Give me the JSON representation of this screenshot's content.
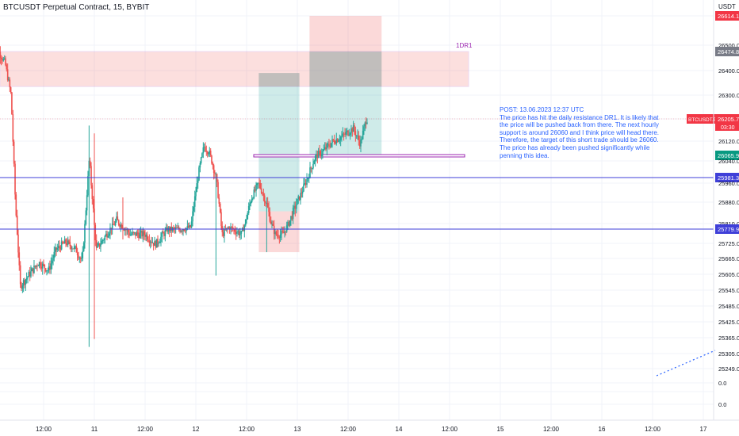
{
  "chart_data": {
    "type": "candlestick",
    "title": "BTCUSDT Perpetual Contract, 15, BYBIT",
    "currency": "USDT",
    "x_tick_labels": [
      "12:00",
      "11",
      "12:00",
      "12",
      "12:00",
      "13",
      "12:00",
      "14",
      "12:00",
      "15",
      "12:00",
      "16",
      "12:00",
      "17"
    ],
    "y_tick_labels": [
      "26614.1",
      "26500.0",
      "26474.8",
      "26400.0",
      "26300.0",
      "26205.7",
      "03:30",
      "26120.0",
      "26065.9",
      "26040.0",
      "25981.3",
      "25960.0",
      "25880.0",
      "25810.0",
      "25779.9",
      "25725.0",
      "25665.0",
      "25605.0",
      "25545.0",
      "25485.0",
      "25425.0",
      "25365.0",
      "25305.0",
      "25249.0",
      "0.0",
      "0.0"
    ],
    "price_label": {
      "symbol": "BTCUSDT.P",
      "value": "26205.7",
      "countdown": "03:30"
    },
    "horizontal_levels": [
      {
        "value": "25981.3",
        "color": "#3f3fd8"
      },
      {
        "value": "25779.9",
        "color": "#3f3fd8"
      }
    ],
    "resistance_zone": {
      "label": "1DR1",
      "top": 26474.8,
      "bottom": 26335,
      "color": "#9c27b0"
    },
    "support_zone_top": 26065.9,
    "positions": [
      {
        "kind": "long",
        "start_day": 12.62,
        "end_day": 13.02,
        "target": 26390,
        "entry": 25850,
        "stop": 25690
      },
      {
        "kind": "short",
        "start_day": 13.12,
        "end_day": 13.83,
        "stop": 26614.1,
        "entry": 26474.8,
        "target": 26065.9
      }
    ],
    "annotation": [
      "POST: 13.06.2023 12:37 UTC",
      "The price has hit the daily resistance DR1. It is likely that",
      "the price will be pushed back from there. The next hourly",
      "support is around 26060 and I think price will head there.",
      "Therefore, the target of this short trade should be 26060.",
      "The price has already been pushed significantly while",
      "penning this idea."
    ],
    "colors": {
      "up": "#26a69a",
      "down": "#ef5350",
      "level": "#3f3fd8",
      "zone": "#9c27b0",
      "price": "#f23645",
      "support": "#089981",
      "note": "#2962ff"
    },
    "candles_note": "approximate OHLC reconstruction",
    "ohlc": []
  }
}
